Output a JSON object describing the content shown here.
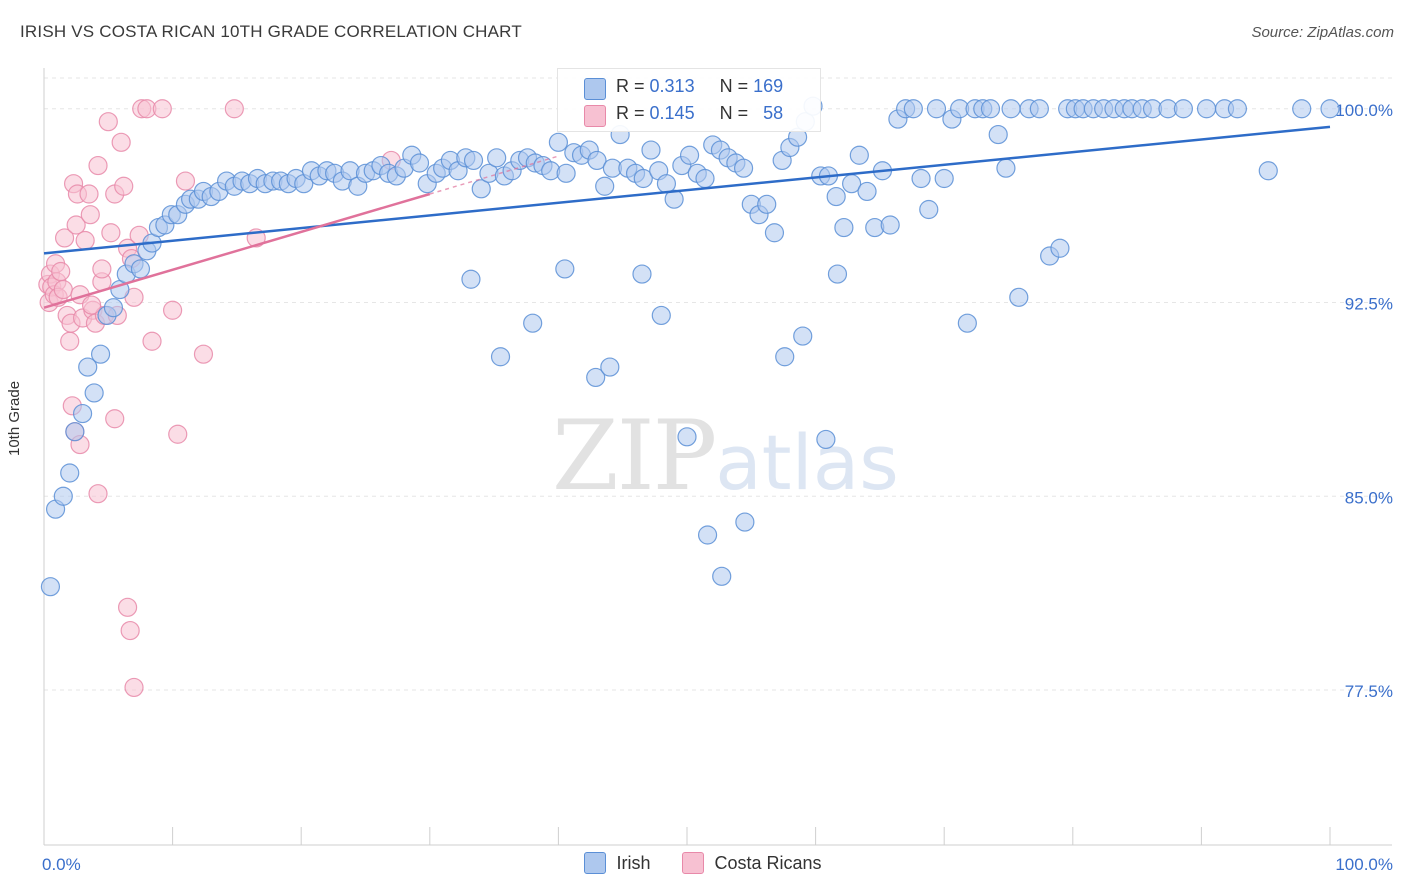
{
  "header": {
    "title": "IRISH VS COSTA RICAN 10TH GRADE CORRELATION CHART",
    "source": "Source: ZipAtlas.com"
  },
  "legend_stats": {
    "irish": {
      "r_label": "R =",
      "r_value": "0.313",
      "n_label": "N =",
      "n_value": "169"
    },
    "costa": {
      "r_label": "R =",
      "r_value": "0.145",
      "n_label": "N =",
      "n_value": "58"
    }
  },
  "watermark": {
    "zip": "ZIP",
    "atlas": "atlas"
  },
  "colors": {
    "irish_fill": "#aec8ee",
    "irish_stroke": "#5b8fd6",
    "irish_line": "#2e6cc8",
    "costa_fill": "#f7c1d2",
    "costa_stroke": "#e889a9",
    "costa_line": "#e0729b",
    "tick_label": "#3a6fcb",
    "grid": "#e6e6e6"
  },
  "chart_data": {
    "type": "scatter",
    "title": "IRISH VS COSTA RICAN 10TH GRADE CORRELATION CHART",
    "ylabel": "10th Grade",
    "xlabel": "",
    "xlim": [
      0,
      100
    ],
    "ylim": [
      71.5,
      101.5
    ],
    "x_tick_labels": [
      "0.0%",
      "100.0%"
    ],
    "y_ticks": [
      77.5,
      85.0,
      92.5,
      100.0
    ],
    "y_tick_labels": [
      "77.5%",
      "85.0%",
      "92.5%",
      "100.0%"
    ],
    "grid": true,
    "legend_position": "bottom",
    "series": [
      {
        "name": "Irish",
        "r": 0.313,
        "n": 169,
        "trend": {
          "x": [
            0,
            100
          ],
          "y": [
            94.4,
            99.3
          ]
        },
        "points": [
          [
            0.5,
            81.5
          ],
          [
            0.9,
            84.5
          ],
          [
            1.5,
            85.0
          ],
          [
            2.0,
            85.9
          ],
          [
            2.4,
            87.5
          ],
          [
            3.0,
            88.2
          ],
          [
            3.4,
            90.0
          ],
          [
            3.9,
            89.0
          ],
          [
            4.4,
            90.5
          ],
          [
            4.9,
            92.0
          ],
          [
            5.4,
            92.3
          ],
          [
            5.9,
            93.0
          ],
          [
            6.4,
            93.6
          ],
          [
            7.0,
            94.0
          ],
          [
            7.5,
            93.8
          ],
          [
            8.0,
            94.5
          ],
          [
            8.4,
            94.8
          ],
          [
            8.9,
            95.4
          ],
          [
            9.4,
            95.5
          ],
          [
            9.9,
            95.9
          ],
          [
            10.4,
            95.9
          ],
          [
            11.0,
            96.3
          ],
          [
            11.4,
            96.5
          ],
          [
            12.0,
            96.5
          ],
          [
            12.4,
            96.8
          ],
          [
            13.0,
            96.6
          ],
          [
            13.6,
            96.8
          ],
          [
            14.2,
            97.2
          ],
          [
            14.8,
            97.0
          ],
          [
            15.4,
            97.2
          ],
          [
            16.0,
            97.1
          ],
          [
            16.6,
            97.3
          ],
          [
            17.2,
            97.1
          ],
          [
            17.8,
            97.2
          ],
          [
            18.4,
            97.2
          ],
          [
            19.0,
            97.1
          ],
          [
            19.6,
            97.3
          ],
          [
            20.2,
            97.1
          ],
          [
            20.8,
            97.6
          ],
          [
            21.4,
            97.4
          ],
          [
            22.0,
            97.6
          ],
          [
            22.6,
            97.5
          ],
          [
            23.2,
            97.2
          ],
          [
            23.8,
            97.6
          ],
          [
            24.4,
            97.0
          ],
          [
            25.0,
            97.5
          ],
          [
            25.6,
            97.6
          ],
          [
            26.2,
            97.8
          ],
          [
            26.8,
            97.5
          ],
          [
            27.4,
            97.4
          ],
          [
            28.0,
            97.7
          ],
          [
            28.6,
            98.2
          ],
          [
            29.2,
            97.9
          ],
          [
            29.8,
            97.1
          ],
          [
            30.5,
            97.5
          ],
          [
            31.0,
            97.7
          ],
          [
            31.6,
            98.0
          ],
          [
            32.2,
            97.6
          ],
          [
            32.8,
            98.1
          ],
          [
            33.4,
            98.0
          ],
          [
            34.0,
            96.9
          ],
          [
            34.6,
            97.5
          ],
          [
            35.2,
            98.1
          ],
          [
            35.8,
            97.4
          ],
          [
            36.4,
            97.6
          ],
          [
            37.0,
            98.0
          ],
          [
            37.6,
            98.1
          ],
          [
            38.2,
            97.9
          ],
          [
            38.8,
            97.8
          ],
          [
            39.4,
            97.6
          ],
          [
            40.0,
            98.7
          ],
          [
            40.6,
            97.5
          ],
          [
            41.2,
            98.3
          ],
          [
            41.8,
            98.2
          ],
          [
            42.4,
            98.4
          ],
          [
            43.0,
            98.0
          ],
          [
            43.6,
            97.0
          ],
          [
            44.2,
            97.7
          ],
          [
            44.8,
            99.0
          ],
          [
            45.4,
            97.7
          ],
          [
            46.0,
            97.5
          ],
          [
            46.6,
            97.3
          ],
          [
            47.2,
            98.4
          ],
          [
            47.8,
            97.6
          ],
          [
            48.4,
            97.1
          ],
          [
            49.0,
            96.5
          ],
          [
            49.6,
            97.8
          ],
          [
            50.2,
            98.2
          ],
          [
            50.8,
            97.5
          ],
          [
            51.4,
            97.3
          ],
          [
            52.0,
            98.6
          ],
          [
            52.6,
            98.4
          ],
          [
            53.2,
            98.1
          ],
          [
            53.8,
            97.9
          ],
          [
            54.4,
            97.7
          ],
          [
            55.0,
            96.3
          ],
          [
            55.6,
            95.9
          ],
          [
            56.2,
            96.3
          ],
          [
            56.8,
            95.2
          ],
          [
            57.4,
            98.0
          ],
          [
            58.0,
            98.5
          ],
          [
            58.6,
            98.9
          ],
          [
            59.2,
            99.5
          ],
          [
            59.8,
            100.1
          ],
          [
            60.4,
            97.4
          ],
          [
            61.0,
            97.4
          ],
          [
            61.6,
            96.6
          ],
          [
            62.2,
            95.4
          ],
          [
            62.8,
            97.1
          ],
          [
            63.4,
            98.2
          ],
          [
            64.0,
            96.8
          ],
          [
            64.6,
            95.4
          ],
          [
            65.2,
            97.6
          ],
          [
            65.8,
            95.5
          ],
          [
            66.4,
            99.6
          ],
          [
            67.0,
            100.0
          ],
          [
            67.6,
            100.0
          ],
          [
            68.2,
            97.3
          ],
          [
            68.8,
            96.1
          ],
          [
            69.4,
            100.0
          ],
          [
            70.0,
            97.3
          ],
          [
            70.6,
            99.6
          ],
          [
            71.2,
            100.0
          ],
          [
            71.8,
            91.7
          ],
          [
            72.4,
            100.0
          ],
          [
            73.0,
            100.0
          ],
          [
            73.6,
            100.0
          ],
          [
            74.2,
            99.0
          ],
          [
            74.8,
            97.7
          ],
          [
            75.2,
            100.0
          ],
          [
            75.8,
            92.7
          ],
          [
            76.6,
            100.0
          ],
          [
            77.4,
            100.0
          ],
          [
            78.2,
            94.3
          ],
          [
            79.0,
            94.6
          ],
          [
            79.6,
            100.0
          ],
          [
            80.2,
            100.0
          ],
          [
            80.8,
            100.0
          ],
          [
            81.6,
            100.0
          ],
          [
            82.4,
            100.0
          ],
          [
            83.2,
            100.0
          ],
          [
            84.0,
            100.0
          ],
          [
            84.6,
            100.0
          ],
          [
            85.4,
            100.0
          ],
          [
            86.2,
            100.0
          ],
          [
            87.4,
            100.0
          ],
          [
            88.6,
            100.0
          ],
          [
            90.4,
            100.0
          ],
          [
            91.8,
            100.0
          ],
          [
            92.8,
            100.0
          ],
          [
            95.2,
            97.6
          ],
          [
            97.8,
            100.0
          ],
          [
            100.0,
            100.0
          ],
          [
            33.2,
            93.4
          ],
          [
            35.5,
            90.4
          ],
          [
            38.0,
            91.7
          ],
          [
            40.5,
            93.8
          ],
          [
            42.9,
            89.6
          ],
          [
            44.0,
            90.0
          ],
          [
            46.5,
            93.6
          ],
          [
            48.0,
            92.0
          ],
          [
            50.0,
            87.3
          ],
          [
            51.6,
            83.5
          ],
          [
            52.7,
            81.9
          ],
          [
            54.5,
            84.0
          ],
          [
            57.6,
            90.4
          ],
          [
            59.0,
            91.2
          ],
          [
            60.8,
            87.2
          ],
          [
            61.7,
            93.6
          ]
        ]
      },
      {
        "name": "Costa Ricans",
        "r": 0.145,
        "n": 58,
        "trend": {
          "x": [
            0,
            30
          ],
          "y": [
            92.3,
            96.7
          ]
        },
        "points": [
          [
            0.3,
            93.2
          ],
          [
            0.4,
            92.5
          ],
          [
            0.5,
            93.6
          ],
          [
            0.6,
            93.1
          ],
          [
            0.8,
            92.8
          ],
          [
            0.9,
            94.0
          ],
          [
            1.0,
            93.3
          ],
          [
            1.1,
            92.7
          ],
          [
            1.3,
            93.7
          ],
          [
            1.5,
            93.0
          ],
          [
            1.6,
            95.0
          ],
          [
            1.8,
            92.0
          ],
          [
            2.0,
            91.0
          ],
          [
            2.1,
            91.7
          ],
          [
            2.3,
            97.1
          ],
          [
            2.5,
            95.5
          ],
          [
            2.6,
            96.7
          ],
          [
            2.8,
            92.8
          ],
          [
            3.0,
            91.9
          ],
          [
            3.2,
            94.9
          ],
          [
            3.5,
            96.7
          ],
          [
            3.6,
            95.9
          ],
          [
            3.8,
            92.2
          ],
          [
            4.0,
            91.7
          ],
          [
            4.2,
            97.8
          ],
          [
            4.5,
            93.3
          ],
          [
            4.7,
            92.0
          ],
          [
            5.0,
            99.5
          ],
          [
            5.2,
            95.2
          ],
          [
            5.5,
            96.7
          ],
          [
            5.7,
            92.0
          ],
          [
            6.0,
            98.7
          ],
          [
            6.2,
            97.0
          ],
          [
            6.5,
            94.6
          ],
          [
            6.8,
            94.2
          ],
          [
            7.0,
            92.7
          ],
          [
            7.4,
            95.1
          ],
          [
            7.6,
            100.0
          ],
          [
            8.0,
            100.0
          ],
          [
            8.4,
            91.0
          ],
          [
            9.2,
            100.0
          ],
          [
            10.0,
            92.2
          ],
          [
            10.4,
            87.4
          ],
          [
            11.0,
            97.2
          ],
          [
            12.4,
            90.5
          ],
          [
            14.8,
            100.0
          ],
          [
            16.5,
            95.0
          ],
          [
            27.0,
            98.0
          ],
          [
            4.5,
            93.8
          ],
          [
            2.2,
            88.5
          ],
          [
            2.4,
            87.5
          ],
          [
            2.8,
            87.0
          ],
          [
            4.2,
            85.1
          ],
          [
            5.5,
            88.0
          ],
          [
            6.5,
            80.7
          ],
          [
            6.7,
            79.8
          ],
          [
            7.0,
            77.6
          ],
          [
            3.7,
            92.4
          ]
        ]
      }
    ]
  }
}
